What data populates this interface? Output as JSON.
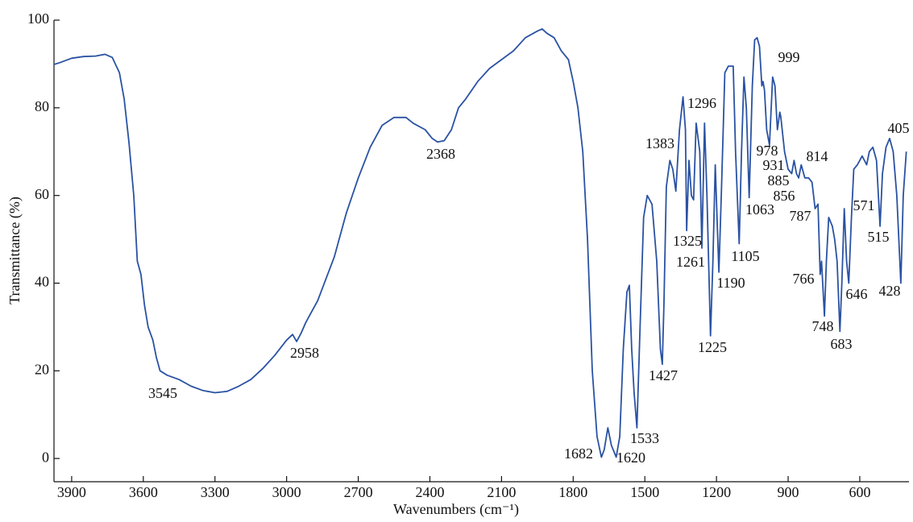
{
  "chart_data": {
    "type": "line",
    "xlabel": "Wavenumbers (cm⁻¹)",
    "ylabel": "Transmittance (%)",
    "xlim": [
      3974,
      394
    ],
    "ylim": [
      -5.3,
      100
    ],
    "xticks": [
      3900,
      3600,
      3300,
      3000,
      2700,
      2400,
      2100,
      1800,
      1500,
      1200,
      900,
      600
    ],
    "yticks": [
      0,
      20,
      40,
      60,
      80,
      100
    ],
    "series": [
      {
        "color": "#2a52a3",
        "x": [
          3974,
          3950,
          3900,
          3850,
          3800,
          3760,
          3730,
          3700,
          3680,
          3660,
          3640,
          3625,
          3610,
          3595,
          3580,
          3560,
          3545,
          3530,
          3500,
          3450,
          3400,
          3350,
          3300,
          3250,
          3200,
          3150,
          3100,
          3050,
          3000,
          2975,
          2958,
          2940,
          2920,
          2900,
          2870,
          2800,
          2750,
          2700,
          2650,
          2600,
          2550,
          2500,
          2470,
          2420,
          2390,
          2368,
          2340,
          2310,
          2280,
          2250,
          2200,
          2150,
          2100,
          2050,
          2000,
          1950,
          1930,
          1910,
          1880,
          1850,
          1820,
          1800,
          1780,
          1760,
          1740,
          1720,
          1700,
          1682,
          1670,
          1655,
          1640,
          1620,
          1605,
          1590,
          1575,
          1565,
          1555,
          1545,
          1533,
          1520,
          1505,
          1490,
          1470,
          1450,
          1435,
          1427,
          1420,
          1410,
          1395,
          1383,
          1370,
          1355,
          1340,
          1330,
          1325,
          1315,
          1305,
          1296,
          1285,
          1270,
          1261,
          1250,
          1240,
          1225,
          1215,
          1205,
          1190,
          1180,
          1165,
          1150,
          1130,
          1120,
          1105,
          1095,
          1085,
          1075,
          1063,
          1050,
          1040,
          1030,
          1020,
          1010,
          1005,
          999,
          990,
          978,
          965,
          955,
          945,
          935,
          931,
          915,
          900,
          885,
          875,
          865,
          856,
          845,
          830,
          814,
          800,
          787,
          775,
          766,
          760,
          748,
          740,
          730,
          715,
          705,
          695,
          683,
          675,
          665,
          655,
          646,
          635,
          625,
          610,
          590,
          571,
          560,
          545,
          530,
          515,
          505,
          490,
          475,
          460,
          445,
          428,
          418,
          405
        ],
        "values": [
          89.9,
          90.3,
          91.3,
          91.7,
          91.8,
          92.2,
          91.5,
          88,
          82,
          72,
          60,
          45,
          42,
          35,
          30,
          27,
          23,
          20,
          19,
          18,
          16.5,
          15.5,
          15,
          15.3,
          16.5,
          18,
          20.5,
          23.5,
          27,
          28.3,
          26.7,
          28.5,
          31,
          33,
          36,
          46,
          56,
          64,
          71,
          76,
          77.8,
          77.8,
          76.5,
          75,
          73,
          72.2,
          72.5,
          75,
          80,
          82,
          86,
          89,
          91,
          93,
          96,
          97.5,
          98,
          97,
          96,
          93,
          91,
          86,
          80,
          70,
          50,
          20,
          5,
          0.3,
          2,
          7,
          3,
          0.3,
          5,
          25,
          38,
          39.5,
          25,
          15,
          7,
          30,
          55,
          60,
          58,
          45,
          25,
          21.5,
          35,
          62,
          68,
          66,
          61,
          75,
          82.5,
          75,
          52,
          68,
          60,
          59,
          76.5,
          70,
          48,
          76.5,
          60,
          28,
          45,
          67,
          42.5,
          60,
          88,
          89.5,
          89.5,
          70,
          49,
          70,
          87,
          80,
          59.5,
          85,
          95.5,
          96,
          94,
          85,
          86,
          84,
          75,
          71.5,
          87,
          85,
          75,
          79,
          78,
          70,
          66,
          65,
          68,
          65,
          64,
          67,
          64,
          64,
          63,
          57,
          58,
          42,
          45,
          32.5,
          45,
          55,
          53,
          50,
          45,
          29,
          40,
          57,
          45,
          40,
          55,
          66,
          67,
          69,
          67,
          70,
          71,
          68,
          53,
          65,
          71,
          73,
          70,
          60,
          40,
          60,
          70
        ]
      }
    ],
    "peaks": [
      3545,
      2958,
      2368,
      1682,
      1620,
      1533,
      1427,
      1383,
      1325,
      1296,
      1261,
      1225,
      1190,
      1105,
      1063,
      999,
      978,
      931,
      885,
      856,
      814,
      787,
      766,
      748,
      683,
      646,
      571,
      515,
      428,
      405
    ]
  }
}
